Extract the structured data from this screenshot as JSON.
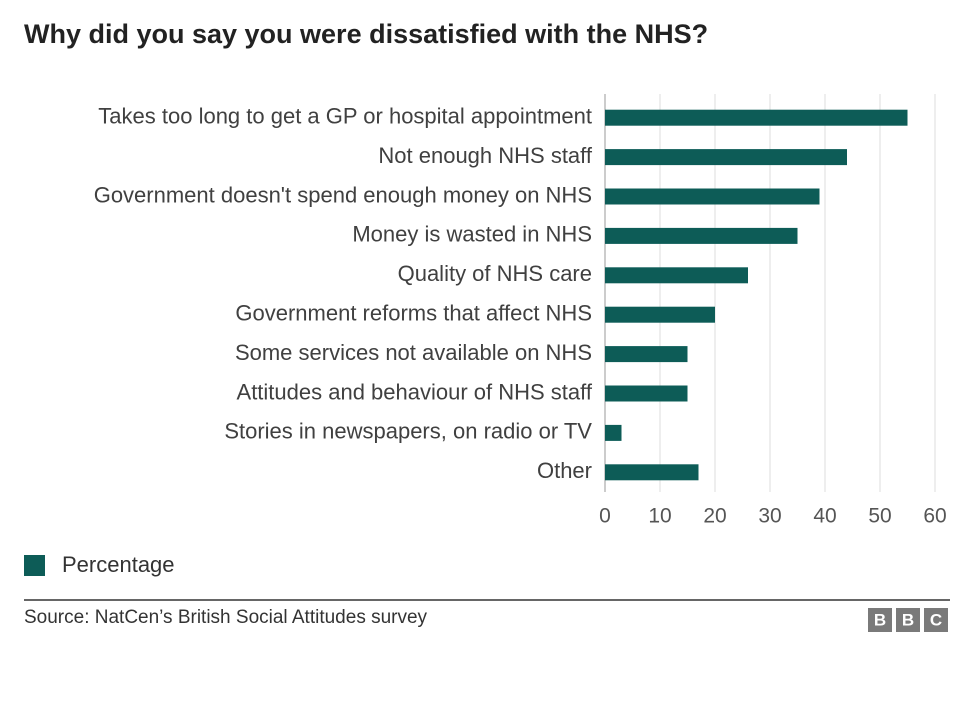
{
  "chart_data": {
    "type": "barh",
    "title": "Why did you say you were dissatisfied with the NHS?",
    "categories": [
      "Takes too long to get a GP or hospital appointment",
      "Not enough NHS staff",
      "Government doesn't spend enough money on NHS",
      "Money is wasted in NHS",
      "Quality of NHS care",
      "Government reforms that affect NHS",
      "Some services not available on NHS",
      "Attitudes and behaviour of NHS staff",
      "Stories in newspapers, on radio or TV",
      "Other"
    ],
    "series": [
      {
        "name": "Percentage",
        "color": "#0d5c57",
        "values": [
          55,
          44,
          39,
          35,
          26,
          20,
          15,
          15,
          3,
          17
        ]
      }
    ],
    "xlim": [
      0,
      60
    ],
    "xticks": [
      0,
      10,
      20,
      30,
      40,
      50,
      60
    ],
    "grid": true,
    "source": "Source: NatCen’s British Social Attitudes survey",
    "logo": [
      "B",
      "B",
      "C"
    ]
  }
}
